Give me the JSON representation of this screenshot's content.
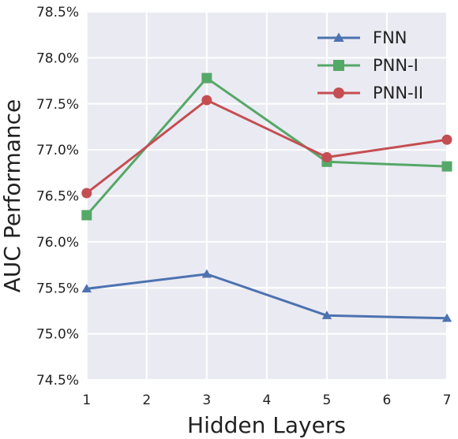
{
  "chart_data": {
    "type": "line",
    "title": "",
    "xlabel": "Hidden Layers",
    "ylabel": "AUC Performance",
    "x": [
      1,
      3,
      5,
      7
    ],
    "xticks": [
      "1",
      "2",
      "3",
      "4",
      "5",
      "6",
      "7"
    ],
    "xlim": [
      0.99,
      7.0
    ],
    "yticks": [
      "74.5%",
      "75.0%",
      "75.5%",
      "76.0%",
      "76.5%",
      "77.0%",
      "77.5%",
      "78.0%",
      "78.5%"
    ],
    "ylim": [
      74.5,
      78.5
    ],
    "grid": true,
    "legend_position": "top-right",
    "series": [
      {
        "name": "FNN",
        "marker": "triangle",
        "color": "#4c72b0",
        "values": [
          75.49,
          75.65,
          75.2,
          75.17
        ]
      },
      {
        "name": "PNN-I",
        "marker": "square",
        "color": "#55a868",
        "values": [
          76.29,
          77.78,
          76.87,
          76.82
        ]
      },
      {
        "name": "PNN-II",
        "marker": "circle",
        "color": "#c44e52",
        "values": [
          76.53,
          77.54,
          76.92,
          77.11
        ]
      }
    ]
  }
}
